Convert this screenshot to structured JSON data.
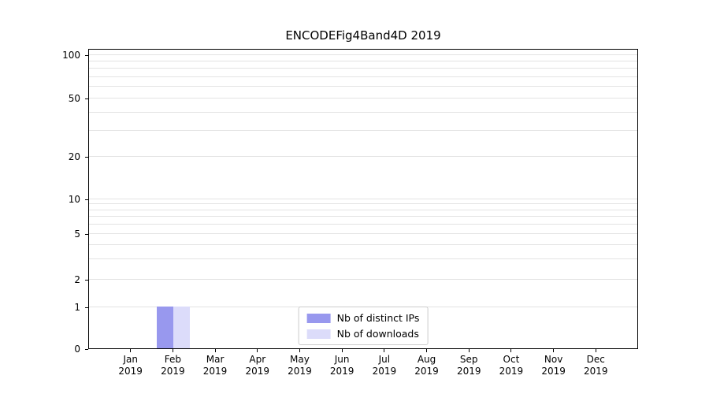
{
  "chart_data": {
    "type": "bar",
    "title": "ENCODEFig4Band4D 2019",
    "xlabel": "",
    "ylabel": "",
    "yscale": "symlog",
    "ylim": [
      0,
      115
    ],
    "yticks_major": [
      0,
      1,
      2,
      5,
      10,
      20,
      50,
      100
    ],
    "yticks_minor": [
      3,
      4,
      6,
      7,
      8,
      9,
      30,
      40,
      60,
      70,
      80,
      90
    ],
    "grid": "horizontal",
    "gridline_color": "#e3e3e3",
    "categories": [
      {
        "month": "Jan",
        "year": "2019"
      },
      {
        "month": "Feb",
        "year": "2019"
      },
      {
        "month": "Mar",
        "year": "2019"
      },
      {
        "month": "Apr",
        "year": "2019"
      },
      {
        "month": "May",
        "year": "2019"
      },
      {
        "month": "Jun",
        "year": "2019"
      },
      {
        "month": "Jul",
        "year": "2019"
      },
      {
        "month": "Aug",
        "year": "2019"
      },
      {
        "month": "Sep",
        "year": "2019"
      },
      {
        "month": "Oct",
        "year": "2019"
      },
      {
        "month": "Nov",
        "year": "2019"
      },
      {
        "month": "Dec",
        "year": "2019"
      }
    ],
    "series": [
      {
        "name": "Nb of distinct IPs",
        "color": "#9898ee",
        "values": [
          0,
          1,
          0,
          0,
          0,
          0,
          0,
          0,
          0,
          0,
          0,
          0
        ]
      },
      {
        "name": "Nb of downloads",
        "color": "#dcdcfa",
        "values": [
          0,
          1,
          0,
          0,
          0,
          0,
          0,
          0,
          0,
          0,
          0,
          0
        ]
      }
    ],
    "legend": {
      "position": "lower center"
    },
    "colors": {
      "background": "#ffffff",
      "axis": "#000000",
      "text": "#000000"
    }
  }
}
